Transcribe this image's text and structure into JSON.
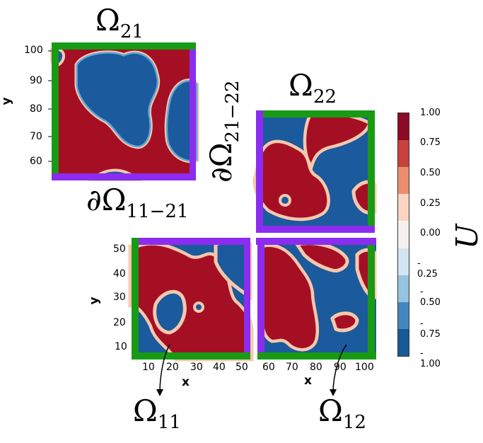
{
  "colors": {
    "red": "#a50f24",
    "blue": "#1b5a9c",
    "green": "#189a14",
    "purple": "#8b2cf0"
  },
  "labels": {
    "omega21": "Ω",
    "omega21_sub": "21",
    "omega22": "Ω",
    "omega22_sub": "22",
    "omega11": "Ω",
    "omega11_sub": "11",
    "omega12": "Ω",
    "omega12_sub": "12",
    "boundary_11_21": "∂Ω",
    "boundary_11_21_sub": "11−21",
    "boundary_21_22": "∂Ω",
    "boundary_21_22_sub": "21−22",
    "colorbar_label": "U"
  },
  "axes": {
    "ylabel_top": "y",
    "ylabel_bottom": "y",
    "xlabel_left": "x",
    "xlabel_right": "x",
    "y_ticks_top": [
      "100",
      "90",
      "80",
      "70",
      "60"
    ],
    "y_ticks_bottom": [
      "50",
      "40",
      "30",
      "20",
      "10"
    ],
    "x_ticks_left": [
      "10",
      "20",
      "30",
      "40",
      "50"
    ],
    "x_ticks_right": [
      "60",
      "70",
      "80",
      "90",
      "100"
    ]
  },
  "colorbar": {
    "ticks": [
      "1.00",
      "0.75",
      "0.50",
      "0.25",
      "0.00",
      "- 0.25",
      "- 0.50",
      "- 0.75",
      "- 1.00"
    ],
    "segments": [
      "#8e0b25",
      "#c8413c",
      "#ec8e6d",
      "#fbd5c2",
      "#f5f1ef",
      "#d3e5f0",
      "#94c4df",
      "#4287bd",
      "#145b97"
    ]
  }
}
